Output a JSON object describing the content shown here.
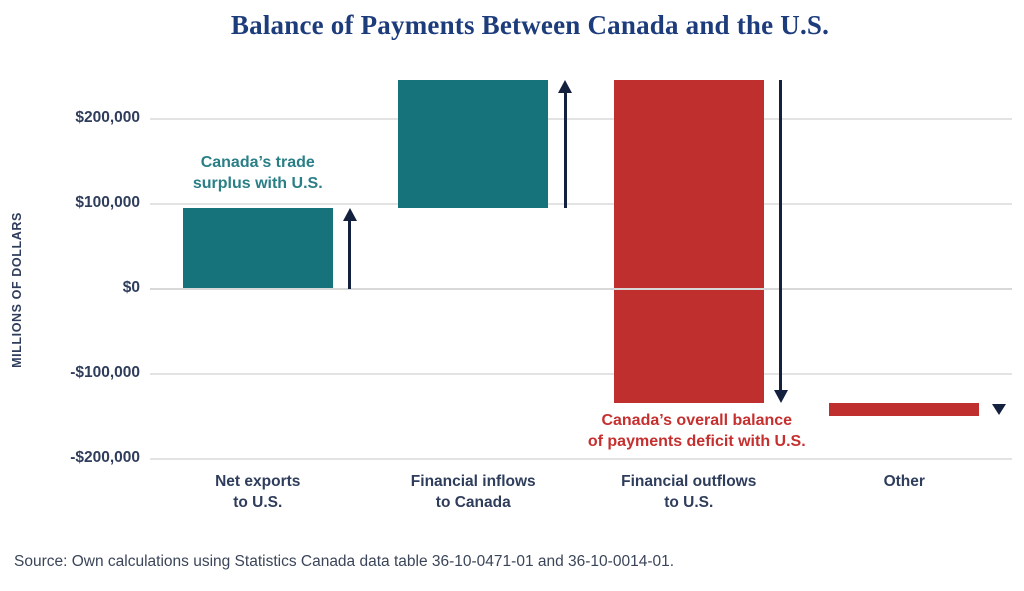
{
  "page": {
    "title": "Balance of Payments Between Canada and the U.S.",
    "source_note": "Source: Own calculations using Statistics Canada data table 36-10-0471-01 and 36-10-0014-01."
  },
  "colors": {
    "title_navy": "#1d3c7c",
    "text_navy": "#2f3d5c",
    "teal": "#16737b",
    "red": "#bf2f2e",
    "arrow_navy": "#14213e",
    "teal_text": "#2a7f87",
    "red_text": "#c5302f",
    "gridline": "#e3e3e3",
    "zero_line": "#d8d8d8",
    "source_text": "#3b4559"
  },
  "chart_data": {
    "type": "bar",
    "subtype": "waterfall",
    "title": "Balance of Payments Between Canada and the U.S.",
    "xlabel": "",
    "ylabel": "MILLIONS OF DOLLARS",
    "ylim": [
      -205000,
      250000
    ],
    "grid": true,
    "legend": false,
    "yticks": [
      {
        "value": 200000,
        "label": "$200,000"
      },
      {
        "value": 100000,
        "label": "$100,000"
      },
      {
        "value": 0,
        "label": "$0"
      },
      {
        "value": -100000,
        "label": "-$100,000"
      },
      {
        "value": -200000,
        "label": "-$200,000"
      }
    ],
    "categories": [
      [
        "Net exports",
        "to U.S."
      ],
      [
        "Financial inflows",
        "to Canada"
      ],
      [
        "Financial outflows",
        "to U.S."
      ],
      [
        "Other"
      ]
    ],
    "bars": [
      {
        "name": "net-exports",
        "start": 0,
        "end": 95000,
        "value": 95000,
        "color": "teal",
        "arrow": "up"
      },
      {
        "name": "financial-inflows",
        "start": 95000,
        "end": 245000,
        "value": 150000,
        "color": "teal",
        "arrow": "up"
      },
      {
        "name": "financial-outflows",
        "start": 245000,
        "end": -135000,
        "value": -380000,
        "color": "red",
        "arrow": "down"
      },
      {
        "name": "other",
        "start": -135000,
        "end": -150000,
        "value": -15000,
        "color": "red",
        "arrow": "small-down"
      }
    ],
    "annotations": [
      {
        "name": "trade-surplus-note",
        "lines": [
          "Canada’s trade",
          "surplus with U.S."
        ],
        "color": "teal_text",
        "slot": 0,
        "position": "above-bar"
      },
      {
        "name": "deficit-note",
        "lines": [
          "Canada’s overall balance",
          "of payments deficit with U.S."
        ],
        "color": "red_text",
        "slot": 2,
        "position": "below-bar"
      }
    ]
  }
}
